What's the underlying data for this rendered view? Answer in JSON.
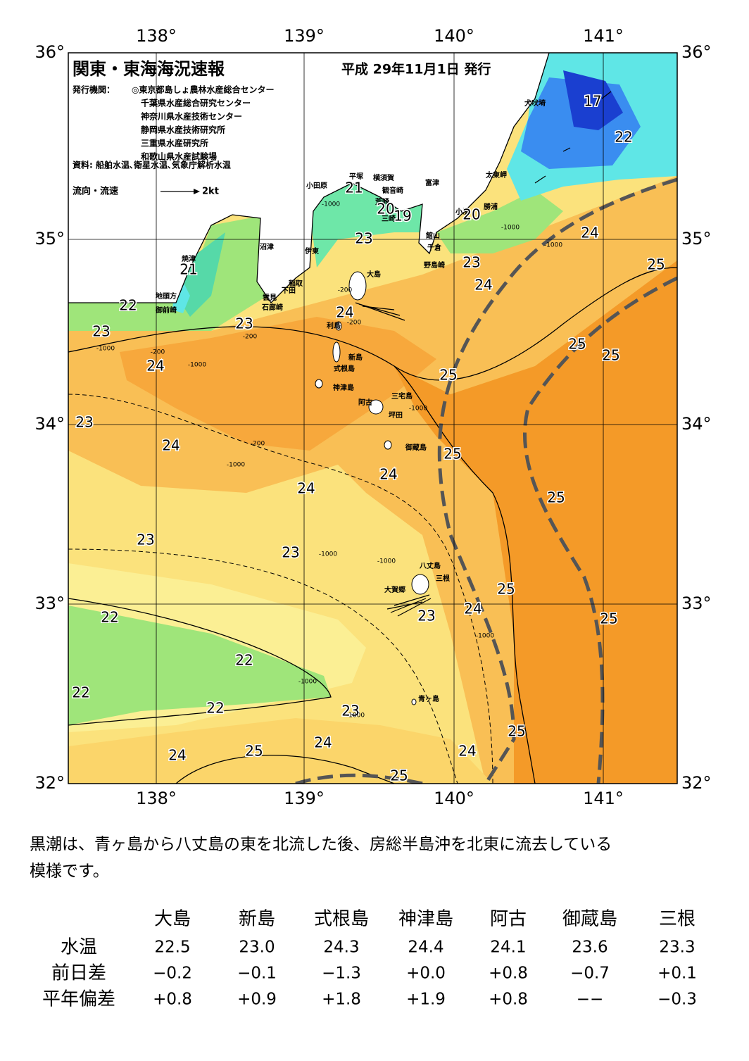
{
  "map": {
    "title": "関東・東海海況速報",
    "date": "平成 29年11月1日 発行",
    "publisher_label": "発行機関：",
    "publishers": [
      "◎東京都島しょ農林水産総合センター",
      "千葉県水産総合研究センター",
      "神奈川県水産技術センター",
      "静岡県水産技術研究所",
      "三重県水産研究所",
      "和歌山県水産試験場"
    ],
    "source": "資料: 船舶水温､衛星水温､気象庁解析水温",
    "current_legend": "流向・流速",
    "current_scale": "2kt",
    "lon_labels": [
      "138°",
      "139°",
      "140°",
      "141°"
    ],
    "lat_labels": [
      "36°",
      "35°",
      "34°",
      "33°",
      "32°"
    ],
    "place_names": [
      "犬吠埼",
      "太東岬",
      "勝浦",
      "小湊",
      "富津",
      "横須賀",
      "観音崎",
      "平塚",
      "小田原",
      "荒崎",
      "三崎",
      "館山",
      "千倉",
      "野島崎",
      "沼津",
      "伊東",
      "焼津",
      "稲取",
      "下田",
      "雲見",
      "石廊崎",
      "地頭方",
      "御前崎",
      "大島",
      "利島",
      "新島",
      "式根島",
      "神津島",
      "三宅島",
      "阿古",
      "坪田",
      "御蔵島",
      "八丈島",
      "三根",
      "大賀郷",
      "青ヶ島"
    ],
    "isotherm_labels": [
      "17",
      "22",
      "21",
      "20",
      "19",
      "20",
      "23",
      "24",
      "23",
      "25",
      "21",
      "24",
      "22",
      "24",
      "23",
      "23",
      "25",
      "25",
      "24",
      "25",
      "23",
      "24",
      "25",
      "24",
      "24",
      "25",
      "23",
      "23",
      "25",
      "24",
      "23",
      "22",
      "25",
      "22",
      "22",
      "23",
      "22",
      "25",
      "24",
      "25",
      "24",
      "24",
      "25"
    ],
    "depth_labels": [
      "-1000",
      "-1000",
      "-200",
      "-200",
      "-1000",
      "-200",
      "-1000",
      "-200",
      "-200",
      "-1000",
      "-1000",
      "-1000",
      "-1000",
      "-1000",
      "-1000",
      "-1000",
      "-1000"
    ]
  },
  "description": [
    "黒潮は、青ヶ島から八丈島の東を北流した後、房総半島沖を北東に流去している",
    "模様です。"
  ],
  "table": {
    "columns": [
      "大島",
      "新島",
      "式根島",
      "神津島",
      "阿古",
      "御蔵島",
      "三根"
    ],
    "rows": [
      {
        "label": "水温",
        "cells": [
          "22.5",
          "23.0",
          "24.3",
          "24.4",
          "24.1",
          "23.6",
          "23.3"
        ]
      },
      {
        "label": "前日差",
        "cells": [
          "−0.2",
          "−0.1",
          "−1.3",
          "+0.0",
          "+0.8",
          "−0.7",
          "+0.1"
        ]
      },
      {
        "label": "平年偏差",
        "cells": [
          "+0.8",
          "+0.9",
          "+1.8",
          "+1.9",
          "+0.8",
          "−−",
          "−0.3"
        ]
      }
    ]
  }
}
